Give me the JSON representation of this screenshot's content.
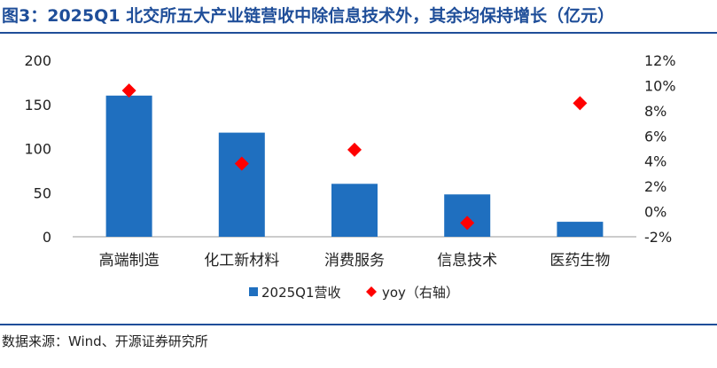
{
  "title": "图3：2025Q1 北交所五大产业链营收中除信息技术外，其余均保持增长（亿元）",
  "source": "数据来源：Wind、开源证券研究所",
  "colors": {
    "bar": "#1f6fbf",
    "marker": "#ff0000",
    "title": "#1f4e99",
    "axis": "#999999"
  },
  "chart_data": {
    "type": "bar",
    "categories": [
      "高端制造",
      "化工新材料",
      "消费服务",
      "信息技术",
      "医药生物"
    ],
    "series": [
      {
        "name": "2025Q1营收",
        "type": "bar",
        "axis": "left",
        "values": [
          160,
          118,
          60,
          48,
          17
        ]
      },
      {
        "name": "yoy（右轴）",
        "type": "scatter",
        "axis": "right",
        "values": [
          9.6,
          3.8,
          4.9,
          -0.9,
          8.6
        ]
      }
    ],
    "y_left": {
      "lim": [
        0,
        200
      ],
      "ticks": [
        "0",
        "50",
        "100",
        "150",
        "200"
      ]
    },
    "y_right": {
      "lim": [
        -2,
        12
      ],
      "ticks": [
        "-2%",
        "0%",
        "2%",
        "4%",
        "6%",
        "8%",
        "10%",
        "12%"
      ]
    },
    "grid": false,
    "legend": "bottom"
  }
}
